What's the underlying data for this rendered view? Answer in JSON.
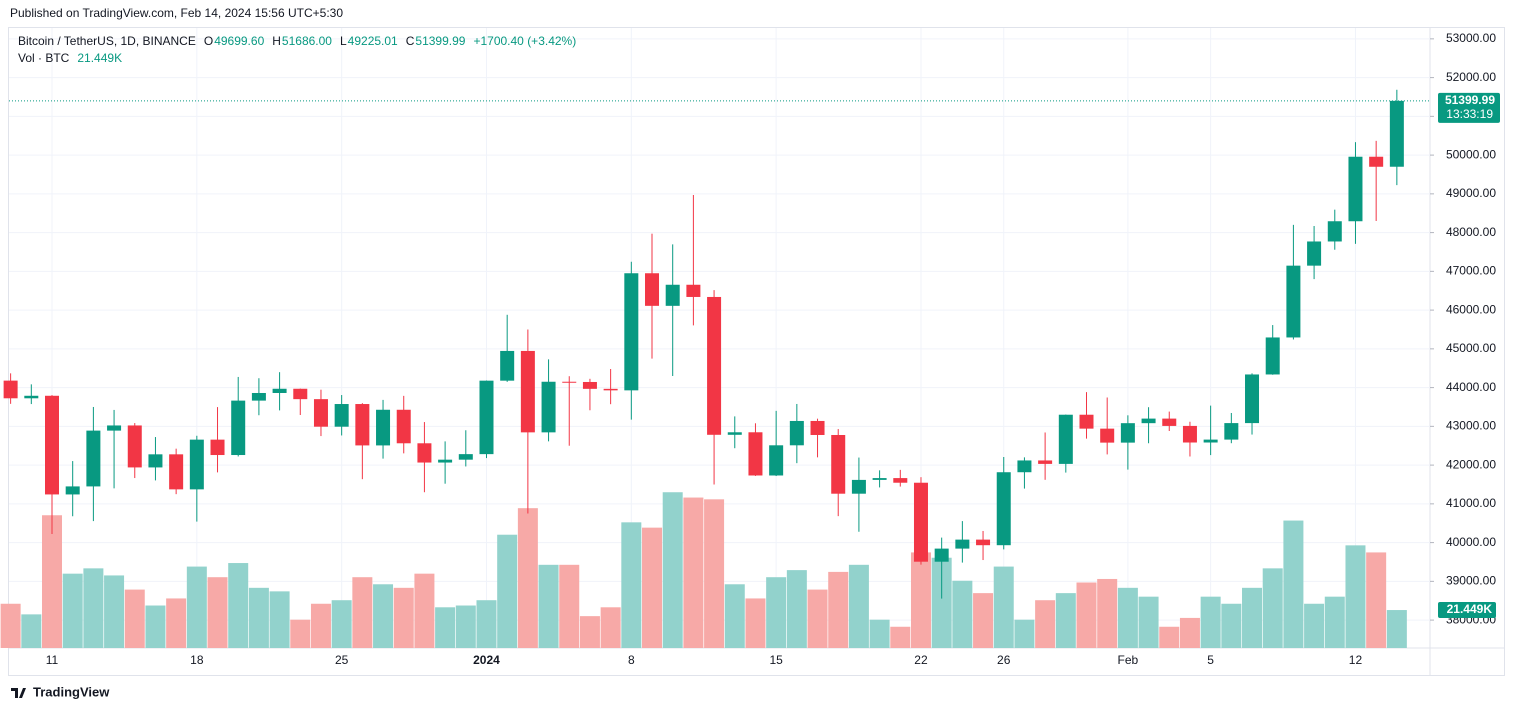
{
  "published": "Published on TradingView.com, Feb 14, 2024 15:56 UTC+5:30",
  "footer": "TradingView",
  "chart_data": {
    "type": "candlestick",
    "symbol": "Bitcoin / TetherUS, 1D, BINANCE",
    "legend_fields": [
      {
        "key": "O",
        "value": "49699.60"
      },
      {
        "key": "H",
        "value": "51686.00"
      },
      {
        "key": "L",
        "value": "49225.01"
      },
      {
        "key": "C",
        "value": "51399.99"
      }
    ],
    "change": "+1700.40 (+3.42%)",
    "volume_name": "Vol · BTC",
    "volume_value": "21.449K",
    "last_price_label": "51399.99",
    "countdown": "13:33:19",
    "up_color": "#089981",
    "down_color": "#f23645",
    "volume_up_color": "#92d2cc",
    "volume_down_color": "#f7a9a7",
    "categories": [
      null,
      null,
      "11",
      null,
      null,
      null,
      null,
      null,
      null,
      "18",
      null,
      null,
      null,
      null,
      null,
      null,
      "25",
      null,
      null,
      null,
      null,
      null,
      null,
      "2024",
      null,
      null,
      null,
      null,
      null,
      null,
      "8",
      null,
      null,
      null,
      null,
      null,
      null,
      "15",
      null,
      null,
      null,
      null,
      null,
      null,
      "22",
      null,
      null,
      null,
      "26",
      null,
      null,
      null,
      null,
      null,
      "Feb",
      null,
      null,
      null,
      "5",
      null,
      null,
      null,
      null,
      null,
      null,
      "12",
      null,
      null
    ],
    "open": [
      44180,
      43724,
      43789,
      41243,
      41450,
      42890,
      43023,
      41940,
      42278,
      41374,
      42657,
      42260,
      43664,
      43861,
      43970,
      43702,
      42991,
      43576,
      42508,
      43428,
      42563,
      42066,
      42140,
      42283,
      44179,
      44946,
      42845,
      44151,
      44145,
      43968,
      43929,
      46951,
      46110,
      46654,
      46339,
      42782,
      42847,
      41732,
      42511,
      43139,
      42777,
      41262,
      41618,
      41665,
      41545,
      39507,
      39845,
      40077,
      39933,
      41816,
      42120,
      42031,
      43300,
      42941,
      42580,
      43082,
      43200,
      43011,
      42583,
      42658,
      43084,
      44339,
      45294,
      47147,
      47771,
      48293,
      49958,
      49699.6
    ],
    "high": [
      44368,
      44084,
      43805,
      42104,
      43500,
      43424,
      43085,
      42724,
      42424,
      42757,
      43497,
      44275,
      44242,
      44398,
      43975,
      43946,
      43808,
      43599,
      43683,
      43787,
      43111,
      42612,
      42899,
      44184,
      45879,
      45500,
      44729,
      44294,
      44227,
      44480,
      47248,
      47972,
      47695,
      48969,
      46515,
      43257,
      43079,
      43400,
      43578,
      43198,
      42930,
      42195,
      41865,
      41877,
      41689,
      40129,
      40555,
      40300,
      42209,
      42200,
      42842,
      43305,
      43882,
      43745,
      43285,
      43494,
      43381,
      43119,
      43535,
      43345,
      44368,
      45614,
      48200,
      48170,
      48592,
      50334,
      50368,
      51686.0
    ],
    "low": [
      43581,
      43575,
      40222,
      40680,
      40555,
      41400,
      41666,
      41605,
      41250,
      40542,
      41812,
      42223,
      43287,
      43412,
      43293,
      42749,
      42765,
      41637,
      42167,
      42303,
      41300,
      41520,
      41965,
      42181,
      44148,
      40750,
      42613,
      42500,
      43415,
      43572,
      43175,
      44748,
      44300,
      45606,
      41500,
      42436,
      41720,
      41718,
      42050,
      42200,
      40683,
      40280,
      41424,
      41446,
      39431,
      38555,
      39484,
      39550,
      39825,
      41394,
      41620,
      41807,
      42683,
      42276,
      41884,
      42564,
      42880,
      42222,
      42258,
      42565,
      42788,
      44331,
      45242,
      46800,
      47558,
      47710,
      48300,
      49225.01
    ],
    "close": [
      43724,
      43789,
      41243,
      41450,
      42890,
      43023,
      41940,
      42278,
      41374,
      42657,
      42260,
      43664,
      43861,
      43970,
      43702,
      42991,
      43576,
      42508,
      43428,
      42563,
      42066,
      42140,
      42283,
      44179,
      44946,
      42845,
      44151,
      44145,
      43968,
      43929,
      46951,
      46110,
      46654,
      46339,
      42782,
      42847,
      41732,
      42511,
      43139,
      42777,
      41262,
      41618,
      41665,
      41545,
      39507,
      39845,
      40077,
      39933,
      41816,
      42120,
      42031,
      43300,
      42941,
      42580,
      43082,
      43200,
      43011,
      42583,
      42658,
      43084,
      44339,
      45294,
      47147,
      47771,
      48293,
      49958,
      49699,
      51399.99
    ],
    "volume": [
      25,
      19,
      75,
      42,
      45,
      41,
      33,
      24,
      28,
      46,
      40,
      48,
      34,
      32,
      16,
      25,
      27,
      40,
      36,
      34,
      42,
      23,
      24,
      27,
      64,
      79,
      47,
      47,
      18,
      23,
      71,
      68,
      88,
      85,
      84,
      36,
      28,
      40,
      44,
      33,
      43,
      47,
      16,
      12,
      54,
      51,
      38,
      31,
      46,
      16,
      27,
      31,
      37,
      39,
      34,
      29,
      12,
      17,
      29,
      25,
      34,
      45,
      72,
      25,
      29,
      58,
      54,
      21.449
    ],
    "ylim": [
      37280,
      53280
    ],
    "yticks": [
      {
        "value": 38000,
        "label": "38000.00"
      },
      {
        "value": 39000,
        "label": "39000.00"
      },
      {
        "value": 40000,
        "label": "40000.00"
      },
      {
        "value": 41000,
        "label": "41000.00"
      },
      {
        "value": 42000,
        "label": "42000.00"
      },
      {
        "value": 43000,
        "label": "43000.00"
      },
      {
        "value": 44000,
        "label": "44000.00"
      },
      {
        "value": 45000,
        "label": "45000.00"
      },
      {
        "value": 46000,
        "label": "46000.00"
      },
      {
        "value": 47000,
        "label": "47000.00"
      },
      {
        "value": 48000,
        "label": "48000.00"
      },
      {
        "value": 49000,
        "label": "49000.00"
      },
      {
        "value": 50000,
        "label": "50000.00"
      },
      {
        "value": 51000,
        "label": "51000.00"
      },
      {
        "value": 52000,
        "label": "52000.00"
      },
      {
        "value": 53000,
        "label": "53000.00"
      }
    ],
    "grid": true
  }
}
